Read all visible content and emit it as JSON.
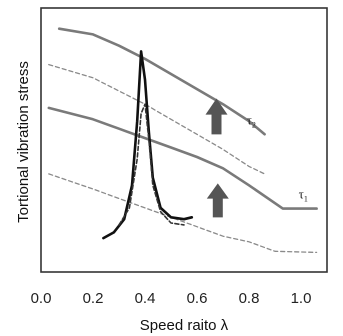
{
  "chart_data": {
    "type": "line",
    "xlabel": "Speed raito λ",
    "ylabel": "Tortional vibration stress",
    "xlim": [
      0.0,
      1.1
    ],
    "x_ticks": [
      "0.0",
      "0.2",
      "0.4",
      "0.6",
      "0.8",
      "1.0"
    ],
    "y_ticks": [],
    "grid": false,
    "series": [
      {
        "name": "τ2",
        "label_main": "τ",
        "label_sub": "2",
        "style": "solid",
        "color": "#7a7a7a",
        "x": [
          0.07,
          0.2,
          0.3,
          0.4,
          0.5,
          0.6,
          0.7,
          0.8,
          0.86
        ],
        "y": [
          5.95,
          5.8,
          5.5,
          5.15,
          4.75,
          4.35,
          3.95,
          3.5,
          3.15
        ]
      },
      {
        "name": "τ1",
        "label_main": "τ",
        "label_sub": "1",
        "style": "solid",
        "color": "#7a7a7a",
        "x": [
          0.03,
          0.2,
          0.3,
          0.4,
          0.5,
          0.6,
          0.7,
          0.8,
          0.93,
          1.06
        ],
        "y": [
          3.85,
          3.55,
          3.3,
          3.05,
          2.8,
          2.55,
          2.25,
          1.8,
          1.18,
          1.18
        ]
      },
      {
        "style": "dashed",
        "color": "#8a8a8a",
        "x": [
          0.03,
          0.2,
          0.3,
          0.4,
          0.5,
          0.6,
          0.7,
          0.8,
          0.86
        ],
        "y": [
          5.0,
          4.65,
          4.3,
          3.95,
          3.55,
          3.15,
          2.75,
          2.3,
          2.1
        ]
      },
      {
        "style": "dashed",
        "color": "#8a8a8a",
        "x": [
          0.03,
          0.2,
          0.3,
          0.4,
          0.5,
          0.6,
          0.7,
          0.8,
          0.9,
          1.06
        ],
        "y": [
          2.1,
          1.7,
          1.45,
          1.2,
          0.95,
          0.7,
          0.45,
          0.3,
          0.05,
          0.02
        ]
      },
      {
        "style": "solid-bold",
        "color": "#111111",
        "x": [
          0.24,
          0.28,
          0.32,
          0.35,
          0.37,
          0.385,
          0.4,
          0.415,
          0.43,
          0.46,
          0.5,
          0.55,
          0.58
        ],
        "y": [
          0.4,
          0.55,
          0.9,
          1.8,
          3.5,
          5.35,
          4.6,
          3.2,
          2.0,
          1.2,
          0.95,
          0.9,
          0.95
        ]
      },
      {
        "style": "dashed-bold",
        "color": "#333333",
        "x": [
          0.3,
          0.34,
          0.37,
          0.385,
          0.4,
          0.415,
          0.43,
          0.46,
          0.5,
          0.55
        ],
        "y": [
          0.75,
          1.2,
          2.5,
          3.7,
          3.95,
          3.0,
          1.8,
          1.1,
          0.8,
          0.75
        ]
      }
    ],
    "arrows": [
      {
        "x": 0.675,
        "y_from": 3.15,
        "y_to": 4.1,
        "color": "#555555"
      },
      {
        "x": 0.68,
        "y_from": 0.95,
        "y_to": 1.85,
        "color": "#555555"
      }
    ]
  }
}
